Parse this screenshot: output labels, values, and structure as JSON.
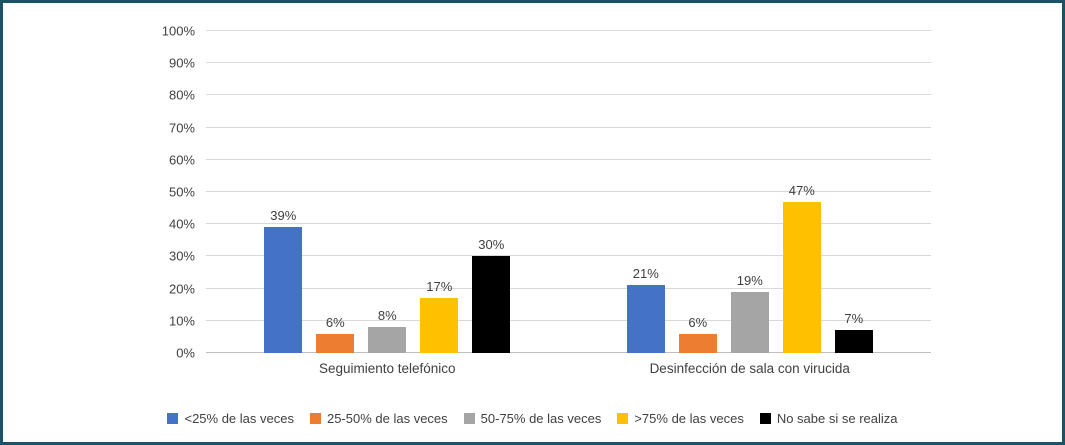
{
  "chart_data": {
    "type": "bar",
    "categories": [
      "Seguimiento telefónico",
      "Desinfección de sala con virucida"
    ],
    "series": [
      {
        "name": "<25% de las veces",
        "color": "#4472C4",
        "values": [
          39,
          21
        ]
      },
      {
        "name": "25-50% de las veces",
        "color": "#ED7D31",
        "values": [
          6,
          6
        ]
      },
      {
        "name": "50-75% de las veces",
        "color": "#A5A5A5",
        "values": [
          8,
          19
        ]
      },
      {
        "name": ">75% de las veces",
        "color": "#FFC000",
        "values": [
          17,
          47
        ]
      },
      {
        "name": "No sabe si se realiza",
        "color": "#000000",
        "values": [
          30,
          7
        ]
      }
    ],
    "title": "",
    "xlabel": "",
    "ylabel": "",
    "ylim": [
      0,
      100
    ],
    "y_tick_step": 10,
    "y_tick_suffix": "%",
    "value_label_suffix": "%",
    "grid": true,
    "legend_position": "bottom"
  },
  "style": {
    "frame_border_color": "#1A5266",
    "gridline_color": "#D9D9D9",
    "axis_line_color": "#BFBFBF",
    "text_color": "#404040"
  }
}
